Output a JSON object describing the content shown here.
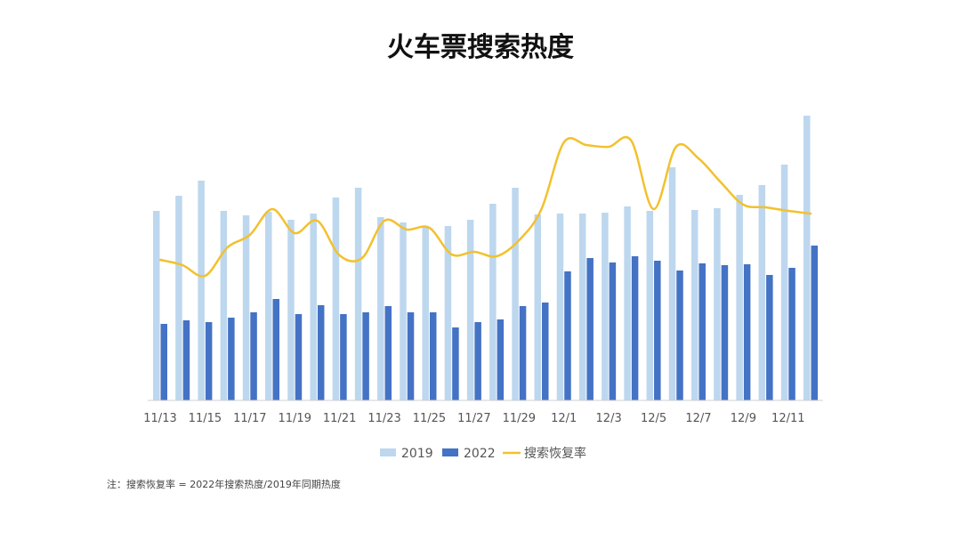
{
  "chart_data": {
    "type": "bar+line",
    "title": "火车票搜索热度",
    "categories": [
      "11/13",
      "11/14",
      "11/15",
      "11/16",
      "11/17",
      "11/18",
      "11/19",
      "11/20",
      "11/21",
      "11/22",
      "11/23",
      "11/24",
      "11/25",
      "11/26",
      "11/27",
      "11/28",
      "11/29",
      "11/30",
      "12/1",
      "12/2",
      "12/3",
      "12/4",
      "12/5",
      "12/6",
      "12/7",
      "12/8",
      "12/9",
      "12/10",
      "12/11",
      "12/12"
    ],
    "tick_labels": [
      "11/13",
      "11/15",
      "11/17",
      "11/19",
      "11/21",
      "11/23",
      "11/25",
      "11/27",
      "11/29",
      "12/1",
      "12/3",
      "12/5",
      "12/7",
      "12/9",
      "12/11"
    ],
    "series": [
      {
        "name": "2019",
        "kind": "bar",
        "color": "#bdd7ee",
        "values": [
          213,
          230,
          247,
          213,
          208,
          212,
          203,
          210,
          228,
          239,
          206,
          200,
          195,
          196,
          203,
          221,
          239,
          209,
          210,
          210,
          211,
          218,
          213,
          262,
          214,
          216,
          231,
          242,
          265,
          320
        ]
      },
      {
        "name": "2022",
        "kind": "bar",
        "color": "#4472c4",
        "values": [
          86,
          90,
          88,
          93,
          99,
          114,
          97,
          107,
          97,
          99,
          106,
          99,
          99,
          82,
          88,
          91,
          106,
          110,
          145,
          160,
          155,
          162,
          157,
          146,
          154,
          152,
          153,
          141,
          149,
          174
        ]
      },
      {
        "name": "搜索恢复率",
        "kind": "line",
        "color": "#f2c12e",
        "values": [
          158,
          152,
          140,
          172,
          186,
          215,
          188,
          202,
          163,
          160,
          202,
          192,
          194,
          164,
          167,
          162,
          180,
          215,
          290,
          287,
          285,
          292,
          215,
          285,
          272,
          245,
          220,
          217,
          213,
          210
        ]
      }
    ],
    "ylim": [
      0,
      360
    ],
    "legend_position": "bottom",
    "grid": false
  },
  "note": "注：搜索恢复率 = 2022年搜索热度/2019年同期热度"
}
